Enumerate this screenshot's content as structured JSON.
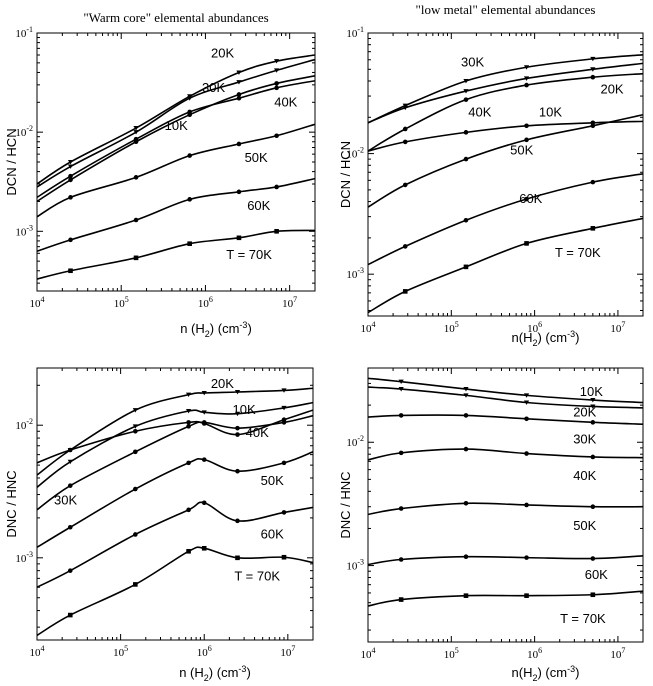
{
  "chart_data": [
    {
      "type": "line",
      "title": "\"Warm core\" elemental abundances",
      "xlabel": "n (H2) (cm-3)",
      "ylabel": "DCN / HCN",
      "xscale": "log",
      "yscale": "log",
      "xlim": [
        10000,
        20000000
      ],
      "ylim": [
        0.00025,
        0.1
      ],
      "xticks": [
        {
          "v": 10000,
          "b": "10",
          "e": "4"
        },
        {
          "v": 100000,
          "b": "10",
          "e": "5"
        },
        {
          "v": 1000000,
          "b": "10",
          "e": "6"
        },
        {
          "v": 10000000,
          "b": "10",
          "e": "7"
        }
      ],
      "yticks": [
        {
          "v": 0.001,
          "b": "10",
          "e": "-3"
        },
        {
          "v": 0.01,
          "b": "10",
          "e": "-2"
        },
        {
          "v": 0.1,
          "b": "10",
          "e": "-1"
        }
      ],
      "series": [
        {
          "name": "20K",
          "label_at": [
            1600000,
            0.062
          ],
          "x": [
            10000,
            25000,
            150000,
            650000,
            2500000,
            7000000,
            20000000
          ],
          "y": [
            0.003,
            0.005,
            0.011,
            0.023,
            0.04,
            0.052,
            0.06
          ]
        },
        {
          "name": "30K",
          "label_at": [
            1250000,
            0.028
          ],
          "x": [
            10000,
            25000,
            150000,
            650000,
            2500000,
            7000000,
            20000000
          ],
          "y": [
            0.0028,
            0.0045,
            0.01,
            0.022,
            0.032,
            0.042,
            0.054
          ]
        },
        {
          "name": "40K",
          "label_at": [
            9000000,
            0.02
          ],
          "x": [
            10000,
            25000,
            150000,
            650000,
            2500000,
            7000000,
            20000000
          ],
          "y": [
            0.002,
            0.0033,
            0.008,
            0.015,
            0.024,
            0.031,
            0.037
          ]
        },
        {
          "name": "10K",
          "label_at": [
            450000,
            0.0115
          ],
          "x": [
            10000,
            25000,
            150000,
            650000,
            2500000,
            7000000,
            20000000
          ],
          "y": [
            0.0022,
            0.0036,
            0.0085,
            0.016,
            0.022,
            0.028,
            0.033
          ]
        },
        {
          "name": "50K",
          "label_at": [
            4000000,
            0.0055
          ],
          "x": [
            10000,
            25000,
            150000,
            650000,
            2500000,
            7000000,
            20000000
          ],
          "y": [
            0.0014,
            0.0022,
            0.0035,
            0.0058,
            0.0076,
            0.0092,
            0.012
          ]
        },
        {
          "name": "60K",
          "label_at": [
            4300000,
            0.0018
          ],
          "x": [
            10000,
            25000,
            150000,
            650000,
            2500000,
            7000000,
            20000000
          ],
          "y": [
            0.00063,
            0.00082,
            0.0013,
            0.0021,
            0.0025,
            0.0028,
            0.0034
          ]
        },
        {
          "name": "T = 70K",
          "label_at": [
            3300000,
            0.00058
          ],
          "x": [
            10000,
            25000,
            150000,
            650000,
            2500000,
            7000000,
            20000000
          ],
          "y": [
            0.00033,
            0.0004,
            0.00054,
            0.00075,
            0.00086,
            0.001,
            0.00102
          ]
        }
      ]
    },
    {
      "type": "line",
      "title": "\"low metal\" elemental abundances",
      "xlabel": "n(H2) (cm-3)",
      "ylabel": "DCN / HCN",
      "xscale": "log",
      "yscale": "log",
      "xlim": [
        10000,
        20000000
      ],
      "ylim": [
        0.00045,
        0.1
      ],
      "xticks": [
        {
          "v": 10000,
          "b": "10",
          "e": "4"
        },
        {
          "v": 100000,
          "b": "10",
          "e": "5"
        },
        {
          "v": 1000000,
          "b": "10",
          "e": "6"
        },
        {
          "v": 10000000,
          "b": "10",
          "e": "7"
        }
      ],
      "yticks": [
        {
          "v": 0.001,
          "b": "10",
          "e": "-3"
        },
        {
          "v": 0.01,
          "b": "10",
          "e": "-2"
        },
        {
          "v": 0.1,
          "b": "10",
          "e": "-1"
        }
      ],
      "series": [
        {
          "name": "30K",
          "label_at": [
            180000,
            0.057
          ],
          "x": [
            10000,
            28000,
            150000,
            800000,
            5000000,
            20000000
          ],
          "y": [
            0.018,
            0.025,
            0.04,
            0.052,
            0.061,
            0.066
          ]
        },
        {
          "name": "20K",
          "label_at": [
            8500000,
            0.034
          ],
          "x": [
            10000,
            28000,
            150000,
            800000,
            5000000,
            20000000
          ],
          "y": [
            0.018,
            0.024,
            0.033,
            0.042,
            0.05,
            0.056
          ]
        },
        {
          "name": "40K",
          "label_at": [
            220000,
            0.022
          ],
          "x": [
            10000,
            28000,
            150000,
            800000,
            5000000,
            20000000
          ],
          "y": [
            0.0105,
            0.016,
            0.028,
            0.037,
            0.043,
            0.046
          ]
        },
        {
          "name": "10K",
          "label_at": [
            1550000,
            0.022
          ],
          "x": [
            10000,
            28000,
            150000,
            800000,
            5000000,
            20000000
          ],
          "y": [
            0.0105,
            0.0125,
            0.015,
            0.017,
            0.018,
            0.0185
          ]
        },
        {
          "name": "50K",
          "label_at": [
            700000,
            0.0106
          ],
          "x": [
            10000,
            28000,
            150000,
            800000,
            5000000,
            20000000
          ],
          "y": [
            0.0036,
            0.0055,
            0.009,
            0.013,
            0.017,
            0.021
          ]
        },
        {
          "name": "60K",
          "label_at": [
            900000,
            0.0042
          ],
          "x": [
            10000,
            28000,
            150000,
            800000,
            5000000,
            20000000
          ],
          "y": [
            0.0012,
            0.0017,
            0.0028,
            0.0042,
            0.0058,
            0.0068
          ]
        },
        {
          "name": "T = 70K",
          "label_at": [
            3300000,
            0.0015
          ],
          "x": [
            10000,
            28000,
            150000,
            800000,
            5000000,
            20000000
          ],
          "y": [
            0.00048,
            0.00072,
            0.00115,
            0.0018,
            0.0024,
            0.0029
          ]
        }
      ]
    },
    {
      "type": "line",
      "title": "",
      "xlabel": "n (H2) (cm-3)",
      "ylabel": "DNC / HNC",
      "xscale": "log",
      "yscale": "log",
      "xlim": [
        10000,
        20000000
      ],
      "ylim": [
        0.00024,
        0.027
      ],
      "xticks": [
        {
          "v": 10000,
          "b": "10",
          "e": "4"
        },
        {
          "v": 100000,
          "b": "10",
          "e": "5"
        },
        {
          "v": 1000000,
          "b": "10",
          "e": "6"
        },
        {
          "v": 10000000,
          "b": "10",
          "e": "7"
        }
      ],
      "yticks": [
        {
          "v": 0.001,
          "b": "10",
          "e": "-3"
        },
        {
          "v": 0.01,
          "b": "10",
          "e": "-2"
        }
      ],
      "series": [
        {
          "name": "20K",
          "label_at": [
            1650000,
            0.0205
          ],
          "x": [
            10000,
            25000,
            150000,
            650000,
            1000000,
            2500000,
            9000000,
            20000000
          ],
          "y": [
            0.0042,
            0.0065,
            0.013,
            0.017,
            0.0175,
            0.0178,
            0.0183,
            0.019
          ]
        },
        {
          "name": "10K",
          "label_at": [
            3000000,
            0.013
          ],
          "x": [
            10000,
            25000,
            150000,
            650000,
            1000000,
            2500000,
            9000000,
            20000000
          ],
          "y": [
            0.0034,
            0.0053,
            0.0098,
            0.0128,
            0.0125,
            0.0122,
            0.0135,
            0.0148
          ]
        },
        {
          "name": "40K",
          "label_at": [
            4300000,
            0.0087
          ],
          "x": [
            10000,
            25000,
            150000,
            650000,
            1000000,
            2500000,
            9000000,
            20000000
          ],
          "y": [
            0.0052,
            0.0065,
            0.009,
            0.0105,
            0.0103,
            0.0085,
            0.011,
            0.013
          ]
        },
        {
          "name": "30K",
          "label_at": [
            22000,
            0.0027
          ],
          "x": [
            10000,
            25000,
            150000,
            650000,
            1000000,
            2500000,
            9000000,
            20000000
          ],
          "y": [
            0.0023,
            0.0035,
            0.0063,
            0.0098,
            0.0105,
            0.0095,
            0.0105,
            0.0118
          ]
        },
        {
          "name": "50K",
          "label_at": [
            6500000,
            0.0038
          ],
          "x": [
            10000,
            25000,
            150000,
            650000,
            1000000,
            2500000,
            9000000,
            20000000
          ],
          "y": [
            0.0012,
            0.0017,
            0.0033,
            0.0052,
            0.0055,
            0.0045,
            0.0052,
            0.0063
          ]
        },
        {
          "name": "60K",
          "label_at": [
            6500000,
            0.0015
          ],
          "x": [
            10000,
            25000,
            150000,
            650000,
            1000000,
            2500000,
            9000000,
            20000000
          ],
          "y": [
            0.0006,
            0.0008,
            0.0015,
            0.0023,
            0.0026,
            0.0019,
            0.0022,
            0.0024
          ]
        },
        {
          "name": "T = 70K",
          "label_at": [
            4300000,
            0.00072
          ],
          "x": [
            10000,
            25000,
            150000,
            650000,
            1000000,
            2500000,
            9000000,
            20000000
          ],
          "y": [
            0.00026,
            0.00037,
            0.00063,
            0.00112,
            0.00118,
            0.001,
            0.00101,
            0.00092
          ]
        }
      ]
    },
    {
      "type": "line",
      "title": "",
      "xlabel": "n(H2) (cm-3)",
      "ylabel": "DNC / HNC",
      "xscale": "log",
      "yscale": "log",
      "xlim": [
        10000,
        20000000
      ],
      "ylim": [
        0.00024,
        0.04
      ],
      "xticks": [
        {
          "v": 10000,
          "b": "10",
          "e": "4"
        },
        {
          "v": 100000,
          "b": "10",
          "e": "5"
        },
        {
          "v": 1000000,
          "b": "10",
          "e": "6"
        },
        {
          "v": 10000000,
          "b": "10",
          "e": "7"
        }
      ],
      "yticks": [
        {
          "v": 0.001,
          "b": "10",
          "e": "-3"
        },
        {
          "v": 0.01,
          "b": "10",
          "e": "-2"
        }
      ],
      "series": [
        {
          "name": "10K",
          "label_at": [
            4800000,
            0.0255
          ],
          "x": [
            10000,
            25000,
            150000,
            800000,
            5000000,
            20000000
          ],
          "y": [
            0.033,
            0.031,
            0.027,
            0.024,
            0.022,
            0.021
          ]
        },
        {
          "name": "20K",
          "label_at": [
            4000000,
            0.0175
          ],
          "x": [
            10000,
            25000,
            150000,
            800000,
            5000000,
            20000000
          ],
          "y": [
            0.028,
            0.027,
            0.024,
            0.021,
            0.0195,
            0.019
          ]
        },
        {
          "name": "30K",
          "label_at": [
            4000000,
            0.0105
          ],
          "x": [
            10000,
            25000,
            150000,
            800000,
            5000000,
            20000000
          ],
          "y": [
            0.016,
            0.0165,
            0.0165,
            0.0155,
            0.0145,
            0.014
          ]
        },
        {
          "name": "40K",
          "label_at": [
            4000000,
            0.0053
          ],
          "x": [
            10000,
            25000,
            150000,
            800000,
            5000000,
            20000000
          ],
          "y": [
            0.0072,
            0.0082,
            0.0088,
            0.0081,
            0.0076,
            0.0075
          ]
        },
        {
          "name": "50K",
          "label_at": [
            4000000,
            0.0021
          ],
          "x": [
            10000,
            25000,
            150000,
            800000,
            5000000,
            20000000
          ],
          "y": [
            0.0026,
            0.0029,
            0.0032,
            0.0031,
            0.003,
            0.003
          ]
        },
        {
          "name": "60K",
          "label_at": [
            5500000,
            0.00084
          ],
          "x": [
            10000,
            25000,
            150000,
            800000,
            5000000,
            20000000
          ],
          "y": [
            0.00102,
            0.00112,
            0.00118,
            0.00116,
            0.00114,
            0.0012
          ]
        },
        {
          "name": "T = 70K",
          "label_at": [
            3800000,
            0.00037
          ],
          "x": [
            10000,
            25000,
            150000,
            800000,
            5000000,
            20000000
          ],
          "y": [
            0.00047,
            0.00053,
            0.00057,
            0.00057,
            0.00058,
            0.00062
          ]
        }
      ]
    }
  ]
}
